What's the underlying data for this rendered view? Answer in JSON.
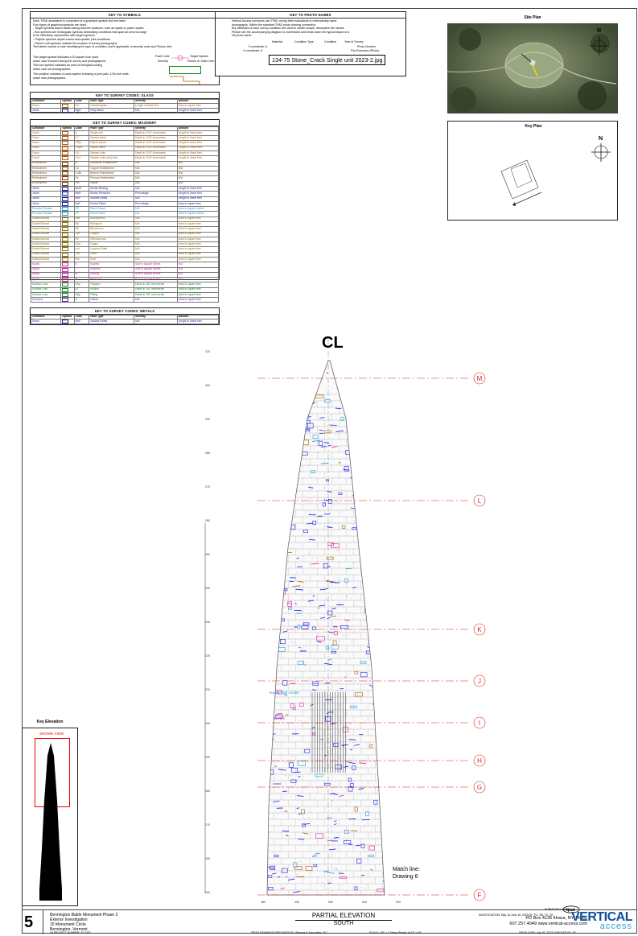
{
  "symbols_key": {
    "title": "KEY TO SYMBOLS",
    "lines": [
      "Each TPAD annotation is comprised of a graphical symbol and text label.",
      "Four types of graphical symbols are used:",
      "- Target symbols depict faults having discrete locations, such as spalls or patch repairs.",
      "- Box symbols are rectangular symbols delineating conditions that span an area too large",
      "  to be effectively represented with target symbols.",
      "- Polyline symbols depict cracks and specific joint conditions.",
      "- Picture Unit symbols indicate the location of survey photographs.",
      "Text labels include a code identifying the type of condition, and if applicable, a severity code and Picture Unit."
    ],
    "legend": [
      "This target symbol indicates a 20 square inch spall,",
      "which was removed during the survey and photographed.",
      "This box symbol indicates an area of biological soiling,",
      "which was not photographed.",
      "This polyline indicates a crack system following a joint path, 1/16 inch wide,",
      "which was photographed."
    ],
    "fault_code": "Fault Code",
    "severity": "Severity",
    "target_symbol": "Target Symbol",
    "picture_unit": "Picture or Video Unit"
  },
  "photo_key": {
    "title": "KEY TO PHOTO NAMES",
    "lines": [
      "Vertical Access surveyors use TPAD during field evaluations to methodically name",
      "photographs. Within the standard TPAD photo naming convention,",
      "key attributes of each survey condition are used to create unique, descriptive file names.",
      "Please see the accompanying diagram to understand and break down the typical layout of a",
      "VA photo name:"
    ],
    "labels": {
      "material": "Material",
      "condition_type": "Condition Type",
      "condition": "Condition",
      "year": "Year of Survey",
      "ycoord": "Y coordinate, ft",
      "xcoord": "X coordinate, ft",
      "photo_number": "Photo Number",
      "file_ext": "File Extension (Photo)"
    },
    "example": "134-75 Stone_Crack Single unit 2023-2.jpg"
  },
  "site_plan": {
    "title": "Site Plan",
    "north": "N"
  },
  "key_plan": {
    "title": "Key Plan",
    "north": "N"
  },
  "glass_table": {
    "title": "KEY TO SURVEY CODES: GLASS",
    "headers": [
      "Condition",
      "Symbol",
      "Code",
      "Fault Type",
      "Severity",
      "Amount"
    ],
    "rows": [
      {
        "c": "Crack",
        "code": "GC",
        "fault": "Cracked glass",
        "sev": "Length in linear feet",
        "amt": "Area in square feet",
        "color": "#b35a00"
      },
      {
        "c": "Joints",
        "code": "MgR",
        "fault": "Putty failed",
        "sev": "N/A",
        "amt": "Length in linear feet",
        "color": "#1a1aa0"
      }
    ]
  },
  "masonry_table": {
    "title": "KEY TO SURVEY CODES: MASONRY",
    "headers": [
      "Condition",
      "Symbol",
      "Code",
      "Fault Type",
      "Severity",
      "Amount"
    ],
    "rows": [
      {
        "c": "Crack",
        "code": "C",
        "fault": "Single unit",
        "sev": "Depth in 1/16\" increments",
        "amt": "Length in linear feet",
        "color": "#b35a00"
      },
      {
        "c": "Crack",
        "code": "CJ",
        "fault": "System joints",
        "sev": "Depth in 1/16\" increments",
        "amt": "Length in linear feet",
        "color": "#b35a00"
      },
      {
        "c": "Crack",
        "code": "CRpr",
        "fault": "Repair sound",
        "sev": "Depth in 1/16\" increments",
        "amt": "Length in linear feet",
        "color": "#b35a00"
      },
      {
        "c": "Crack",
        "code": "CRprF",
        "fault": "Repair failed",
        "sev": "Depth in 1/16\" increments",
        "amt": "Length in linear feet",
        "color": "#b35a00"
      },
      {
        "c": "Crack",
        "code": "CU",
        "fault": "System units",
        "sev": "Depth in 1/16\" increments",
        "amt": "Length in linear feet",
        "color": "#b35a00"
      },
      {
        "c": "Crack",
        "code": "CUJ",
        "fault": "System units and joints",
        "sev": "Depth in 1/16\" increments",
        "amt": "Length in linear feet",
        "color": "#b35a00"
      },
      {
        "c": "Embedment",
        "code": "A",
        "fault": "Aluminum Embedment",
        "sev": "N/A",
        "amt": "N/A",
        "color": "#7a3d00"
      },
      {
        "c": "Embedment",
        "code": "Cu",
        "fault": "Copper Embedment",
        "sev": "N/A",
        "amt": "N/A",
        "color": "#7a3d00"
      },
      {
        "c": "Embedment",
        "code": "CuBr",
        "fault": "Bronze Embedment",
        "sev": "N/A",
        "amt": "N/A",
        "color": "#7a3d00"
      },
      {
        "c": "Embedment",
        "code": "Fe",
        "fault": "Ferrous Embedment",
        "sev": "N/A",
        "amt": "N/A",
        "color": "#7a3d00"
      },
      {
        "c": "Embedment",
        "code": "Pbl",
        "fault": "Repair",
        "sev": "N/A",
        "amt": "N/A",
        "color": "#7a3d00"
      },
      {
        "c": "Joints",
        "code": "MoM",
        "fault": "Mortar Missing",
        "sev": "N/A",
        "amt": "Length in linear feet",
        "color": "#1a1aa0"
      },
      {
        "c": "Joints",
        "code": "MoR",
        "fault": "Mortar Removed",
        "sev": "Percentage",
        "amt": "Length in linear feet",
        "color": "#1a1aa0"
      },
      {
        "c": "Joints",
        "code": "MoP",
        "fault": "Sealant Failed",
        "sev": "N/A",
        "amt": "Length in linear feet",
        "color": "#1a1aa0"
      },
      {
        "c": "Joints",
        "code": "MoF",
        "fault": "Mortar Failed",
        "sev": "Percentage",
        "amt": "Area in square feet",
        "color": "#1a1aa0"
      },
      {
        "c": "Previous Repairs",
        "code": "PS",
        "fault": "Patch Sound",
        "sev": "N/A",
        "amt": "Area in square inches",
        "color": "#1f9ad6"
      },
      {
        "c": "Previous Repairs",
        "code": "PF",
        "fault": "Patch Failed",
        "sev": "N/A",
        "amt": "Area in square inches",
        "color": "#1f9ad6"
      },
      {
        "c": "Soiled/Stained",
        "code": "Atm",
        "fault": "Atmospheric",
        "sev": "N/A",
        "amt": "Area in square feet",
        "color": "#8a7400"
      },
      {
        "c": "Soiled/Stained",
        "code": "Bio",
        "fault": "Biological",
        "sev": "N/A",
        "amt": "Area in square feet",
        "color": "#8a7400"
      },
      {
        "c": "Soiled/Stained",
        "code": "Bit",
        "fault": "Bituminous",
        "sev": "N/A",
        "amt": "Area in square feet",
        "color": "#8a7400"
      },
      {
        "c": "Soiled/Stained",
        "code": "Cpr",
        "fault": "Copper",
        "sev": "N/A",
        "amt": "Area in square feet",
        "color": "#8a7400"
      },
      {
        "c": "Soiled/Stained",
        "code": "Eff",
        "fault": "Efflorescence",
        "sev": "N/A",
        "amt": "Area in square feet",
        "color": "#8a7400"
      },
      {
        "c": "Soiled/Stained",
        "code": "Gua",
        "fault": "Guano",
        "sev": "N/A",
        "amt": "Area in square feet",
        "color": "#8a7400"
      },
      {
        "c": "Soiled/Stained",
        "code": "Lch",
        "fault": "Leached Salts",
        "sev": "N/A",
        "amt": "Area in square feet",
        "color": "#8a7400"
      },
      {
        "c": "Soiled/Stained",
        "code": "Pnt",
        "fault": "Paint",
        "sev": "N/A",
        "amt": "Area in square feet",
        "color": "#8a7400"
      },
      {
        "c": "Soiled/Stained",
        "code": "Rst",
        "fault": "Rust",
        "sev": "N/A",
        "amt": "Area in square feet",
        "color": "#8a7400"
      },
      {
        "c": "Spalls",
        "code": "S",
        "fault": "Spalled",
        "sev": "Size in square inches",
        "amt": "N/A",
        "color": "#d01ea0"
      },
      {
        "c": "Spalls",
        "code": "I",
        "fault": "Incipient",
        "sev": "Size in square inches",
        "amt": "N/A",
        "color": "#d01ea0"
      },
      {
        "c": "Spalls",
        "code": "M",
        "fault": "Missing",
        "sev": "Size in square inches",
        "amt": "N/A",
        "color": "#d01ea0"
      },
      {
        "c": "Spalls",
        "code": "R",
        "fault": "Removed",
        "sev": "Size in square inches",
        "amt": "N/A",
        "color": "#d01ea0"
      },
      {
        "c": "Surface Loss",
        "code": "Chp",
        "fault": "Chipped",
        "sev": "Depth in 1/8\" increments",
        "amt": "Area in square feet",
        "color": "#0f8a1e"
      },
      {
        "c": "Surface Loss",
        "code": "Er",
        "fault": "Eroded",
        "sev": "Depth in 1/8\" increments",
        "amt": "Area in square feet",
        "color": "#0f8a1e"
      },
      {
        "c": "Surface Loss",
        "code": "Ppg",
        "fault": "Pitting",
        "sev": "Depth in 1/8\" increments",
        "amt": "Area in square feet",
        "color": "#0f8a1e"
      },
      {
        "c": "Unsound",
        "code": "H",
        "fault": "Hollow",
        "sev": "N/A",
        "amt": "Area in square feet",
        "color": "#6a1bb0"
      }
    ]
  },
  "metals_table": {
    "title": "KEY TO SURVEY CODES: METALS",
    "headers": [
      "Condition",
      "Symbol",
      "Code",
      "Fault Type",
      "Severity",
      "Amount"
    ],
    "rows": [
      {
        "c": "Seam",
        "code": "MoP",
        "fault": "Sealant Failed",
        "sev": "N/A",
        "amt": "Length in linear feet",
        "color": "#1a1aa0"
      }
    ]
  },
  "elevation": {
    "centerline": "CL",
    "grid_labels": [
      "M",
      "L",
      "K",
      "J",
      "I",
      "H",
      "G",
      "F"
    ],
    "match_line": [
      "Match line:",
      "Drawing 6"
    ],
    "y_ticks": [
      "310",
      "300",
      "290",
      "280",
      "270",
      "260",
      "250",
      "240",
      "230",
      "220",
      "210",
      "200",
      "190",
      "180",
      "170",
      "160",
      "150"
    ],
    "x_ticks": [
      "480",
      "490",
      "500",
      "510",
      "520"
    ],
    "annotations": [
      "box embed cracks",
      "atl Rnc"
    ]
  },
  "key_elevation": {
    "title": "Key Elevation",
    "shown": "SHOWN VIEW"
  },
  "title_block": {
    "sheet_number": "5",
    "project_lines": [
      "Bennington Battle Monument Phase 2",
      "Exterior Investigation",
      "15 Monument Circle",
      "Bennington, Vermont"
    ],
    "project_number": "VA PROJECT NUMBER: 23-2457",
    "drawing_title": "PARTIAL ELEVATION",
    "drawing_subtitle": "SOUTH",
    "drawing_source": "FROM DRAWINGS PROVIDED BY: Stevens & Associates, P.C.",
    "scale": "SCALE: 1/8\" = 1' When Printed at 24\" x 36\"",
    "survey": "INVESTIGATION: May 15-June 16, 2023    BY: PC, SB, TK, CE",
    "surveyed_using": "SURVEYED USING",
    "address": "PO Box 4135  Ithaca, NY 14852",
    "contact": "607.257.4049  www.vertical-access.com",
    "issue": "ISSUE DATE: July 30, 2023    CHECKED BY: TK",
    "brand1": "VERTICAL",
    "brand2": "access"
  }
}
